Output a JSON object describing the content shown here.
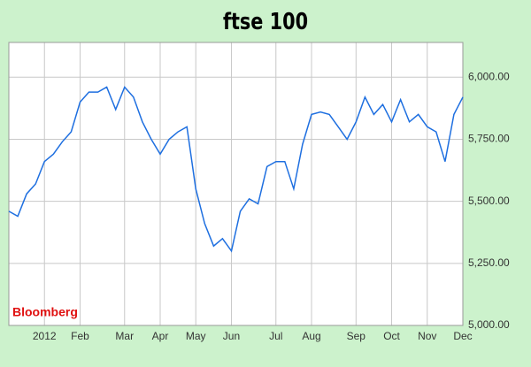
{
  "chart_data": {
    "type": "line",
    "title": "ftse 100",
    "source": "Bloomberg",
    "categories": [
      null,
      null,
      null,
      null,
      "2012",
      null,
      null,
      null,
      "Feb",
      null,
      null,
      null,
      null,
      "Mar",
      null,
      null,
      null,
      "Apr",
      null,
      null,
      null,
      "May",
      null,
      null,
      null,
      "Jun",
      null,
      null,
      null,
      null,
      "Jul",
      null,
      null,
      null,
      "Aug",
      null,
      null,
      null,
      null,
      "Sep",
      null,
      null,
      null,
      "Oct",
      null,
      null,
      null,
      "Nov",
      null,
      null,
      null,
      "Dec"
    ],
    "series": [
      {
        "color": "#1e6fe0",
        "values": [
          5460,
          5440,
          5530,
          5570,
          5660,
          5690,
          5740,
          5780,
          5900,
          5940,
          5940,
          5960,
          5870,
          5960,
          5920,
          5820,
          5750,
          5690,
          5750,
          5780,
          5800,
          5550,
          5410,
          5320,
          5350,
          5300,
          5460,
          5510,
          5490,
          5640,
          5660,
          5660,
          5550,
          5730,
          5850,
          5860,
          5850,
          5800,
          5750,
          5820,
          5920,
          5850,
          5890,
          5820,
          5910,
          5820,
          5850,
          5800,
          5780,
          5660,
          5850,
          5920
        ]
      }
    ],
    "ylim": [
      5000,
      6140
    ],
    "yticks": [
      {
        "value": 5000,
        "label": "5,000.00"
      },
      {
        "value": 5250,
        "label": "5,250.00"
      },
      {
        "value": 5500,
        "label": "5,500.00"
      },
      {
        "value": 5750,
        "label": "5,750.00"
      },
      {
        "value": 6000,
        "label": "6,000.00"
      }
    ],
    "grid": true
  }
}
